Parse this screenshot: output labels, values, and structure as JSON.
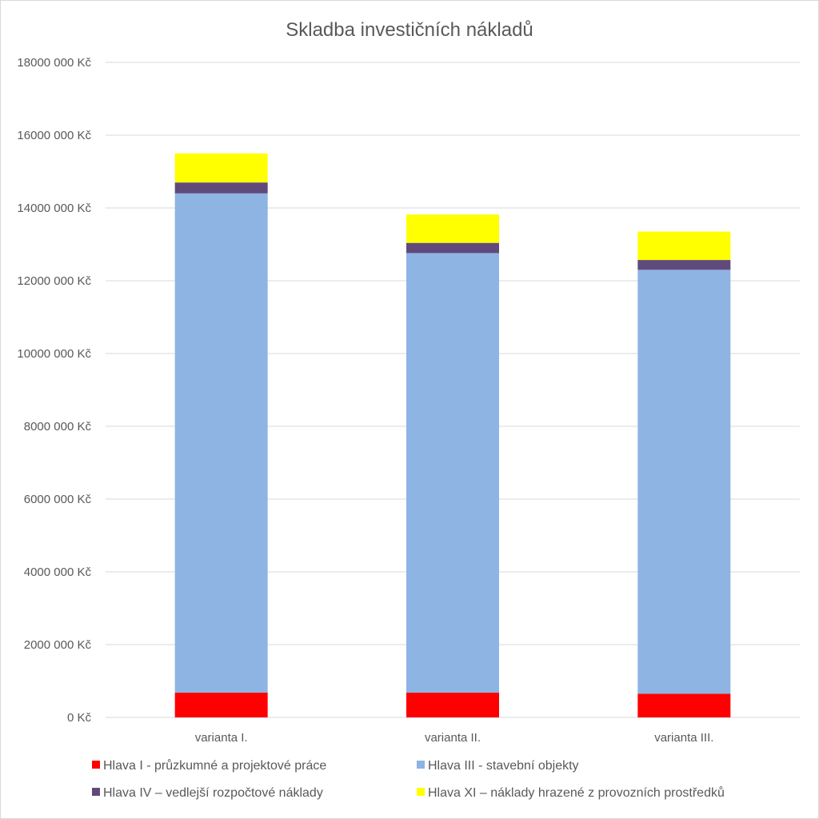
{
  "chart_data": {
    "type": "bar",
    "stacked": true,
    "title": "Skladba investičních nákladů",
    "xlabel": "",
    "ylabel": "",
    "categories": [
      "varianta I.",
      "varianta II.",
      "varianta III."
    ],
    "ylim": [
      0,
      18000000
    ],
    "yticks": [
      0,
      2000000,
      4000000,
      6000000,
      8000000,
      10000000,
      12000000,
      14000000,
      16000000,
      18000000
    ],
    "ytick_labels": [
      "0 Kč",
      "2000 000 Kč",
      "4000 000 Kč",
      "6000 000 Kč",
      "8000 000 Kč",
      "10000 000 Kč",
      "12000 000 Kč",
      "14000 000 Kč",
      "16000 000 Kč",
      "18000 000 Kč"
    ],
    "grid": true,
    "legend_position": "bottom",
    "series": [
      {
        "name": "Hlava I - průzkumné a projektové práce",
        "color": "#ff0000",
        "values": [
          680000,
          680000,
          650000
        ]
      },
      {
        "name": "Hlava III - stavební objekty",
        "color": "#8eb4e3",
        "values": [
          13720000,
          12080000,
          11650000
        ]
      },
      {
        "name": "Hlava IV – vedlejší rozpočtové náklady",
        "color": "#604a7b",
        "values": [
          300000,
          280000,
          270000
        ]
      },
      {
        "name": "Hlava XI – náklady hrazené z provozních prostředků",
        "color": "#ffff00",
        "values": [
          800000,
          780000,
          780000
        ]
      }
    ]
  }
}
